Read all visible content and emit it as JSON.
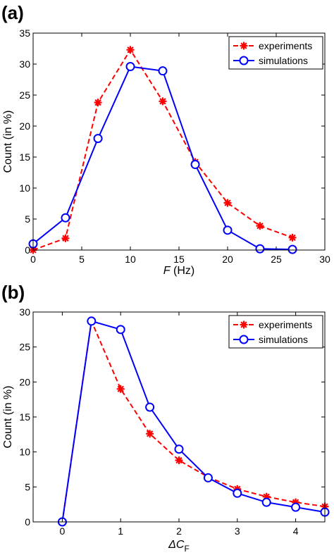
{
  "chart_data": [
    {
      "type": "line",
      "panel_label": "(a)",
      "xlabel": {
        "italic": "F",
        "rest": " (Hz)"
      },
      "ylabel": "Count (in %)",
      "xlim": [
        0,
        30
      ],
      "ylim": [
        0,
        35
      ],
      "xticks": [
        0,
        5,
        10,
        15,
        20,
        25,
        30
      ],
      "yticks": [
        0,
        5,
        10,
        15,
        20,
        25,
        30,
        35
      ],
      "grid": false,
      "legend_position": "top-right",
      "series": [
        {
          "name": "experiments",
          "color": "#ff0000",
          "style": "dashed",
          "marker": "asterisk",
          "x": [
            0,
            3.33,
            6.67,
            10,
            13.33,
            16.67,
            20,
            23.33,
            26.67
          ],
          "y": [
            0,
            1.9,
            23.8,
            32.3,
            24.0,
            14.2,
            7.6,
            3.9,
            2.0
          ]
        },
        {
          "name": "simulations",
          "color": "#0000ff",
          "style": "solid",
          "marker": "circle",
          "x": [
            0,
            3.33,
            6.67,
            10,
            13.33,
            16.67,
            20,
            23.33,
            26.67
          ],
          "y": [
            1.0,
            5.2,
            18.0,
            29.6,
            28.9,
            13.8,
            3.2,
            0.2,
            0.1
          ]
        }
      ]
    },
    {
      "type": "line",
      "panel_label": "(b)",
      "xlabel": {
        "italic": "ΔC",
        "sub": "F",
        "rest": ""
      },
      "ylabel": "Count (in %)",
      "xlim": [
        -0.5,
        4.5
      ],
      "ylim": [
        0,
        30
      ],
      "xticks": [
        0,
        1,
        2,
        3,
        4
      ],
      "yticks": [
        0,
        5,
        10,
        15,
        20,
        25,
        30
      ],
      "grid": false,
      "legend_position": "top-right",
      "series": [
        {
          "name": "experiments",
          "color": "#ff0000",
          "style": "dashed",
          "marker": "asterisk",
          "x": [
            0,
            0.5,
            1,
            1.5,
            2,
            2.5,
            3,
            3.5,
            4,
            4.5
          ],
          "y": [
            0,
            28.7,
            19.0,
            12.6,
            8.8,
            6.4,
            4.7,
            3.6,
            2.8,
            2.2
          ]
        },
        {
          "name": "simulations",
          "color": "#0000ff",
          "style": "solid",
          "marker": "circle",
          "x": [
            0,
            0.5,
            1,
            1.5,
            2,
            2.5,
            3,
            3.5,
            4,
            4.5
          ],
          "y": [
            0,
            28.7,
            27.5,
            16.4,
            10.4,
            6.3,
            4.1,
            2.8,
            2.1,
            1.4
          ]
        }
      ]
    }
  ]
}
